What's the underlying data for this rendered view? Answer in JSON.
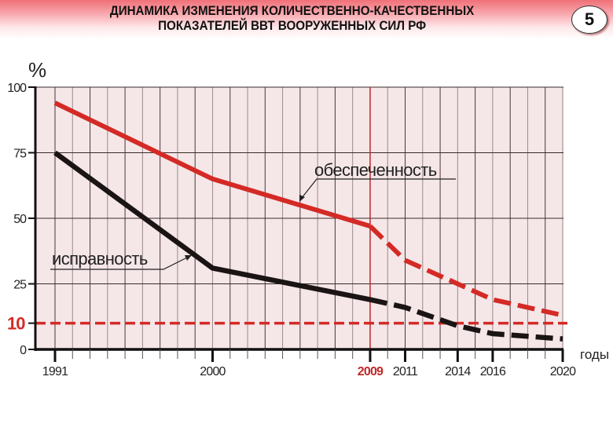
{
  "header": {
    "title_line1": "ДИНАМИКА ИЗМЕНЕНИЯ КОЛИЧЕСТВЕННО-КАЧЕСТВЕННЫХ",
    "title_line2": "ПОКАЗАТЕЛЕЙ ВВТ ВООРУЖЕННЫХ СИЛ РФ",
    "slide_number": "5"
  },
  "colors": {
    "plot_background": "#f5e6e8",
    "red_series": "#d42a25",
    "black_series": "#1a1414",
    "grid": "#3a2a2a",
    "highlight_year": "#c0282a"
  },
  "chart_data": {
    "type": "line",
    "title": "ДИНАМИКА ИЗМЕНЕНИЯ КОЛИЧЕСТВЕННО-КАЧЕСТВЕННЫХ ПОКАЗАТЕЛЕЙ ВВТ ВООРУЖЕННЫХ СИЛ РФ",
    "xlabel": "годы",
    "ylabel": "%",
    "ylim": [
      0,
      100
    ],
    "xlim": [
      1991,
      2020
    ],
    "y_ticks": [
      0,
      25,
      50,
      75,
      100
    ],
    "y_tick_labels": [
      "0",
      "25",
      "50",
      "75",
      "100"
    ],
    "x_tick_labels": [
      "1991",
      "2000",
      "2009",
      "2011",
      "2014",
      "2016",
      "2020"
    ],
    "x_ticks": [
      1991,
      2000,
      2009,
      2011,
      2014,
      2016,
      2020
    ],
    "highlighted_x": 2009,
    "x": [
      1991,
      2000,
      2009,
      2011,
      2014,
      2016,
      2020
    ],
    "series": [
      {
        "name": "обеспеченность",
        "color": "#d42a25",
        "values": [
          94,
          65,
          47,
          34,
          25,
          19,
          13
        ],
        "solid_until": 2009,
        "dashed_after": 2009
      },
      {
        "name": "исправность",
        "color": "#1a1414",
        "values": [
          75,
          31,
          19,
          16,
          9,
          6,
          4
        ],
        "solid_until": 2009,
        "dashed_after": 2009
      }
    ],
    "reference_lines": [
      {
        "value": 10,
        "label": "10",
        "style": "dashed",
        "color": "#d42a25"
      }
    ],
    "annotations": [
      {
        "text": "обеспеченность",
        "points_to_series": "обеспеченность"
      },
      {
        "text": "исправность",
        "points_to_series": "исправность"
      }
    ],
    "grid": true,
    "legend": "none (inline labels)"
  }
}
